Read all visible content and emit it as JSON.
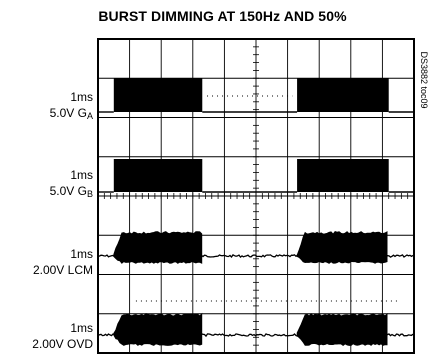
{
  "title": "BURST DIMMING AT 150Hz AND 50%",
  "figure_code": "DS3882 toc09",
  "chart_data": {
    "type": "line",
    "title": "BURST DIMMING AT 150Hz AND 50%",
    "divisions": {
      "horizontal": 10,
      "vertical": 8
    },
    "grid": true,
    "traces": [
      {
        "timebase": "1ms",
        "scale": "5.0V",
        "name": "G",
        "sub": "A",
        "kind": "pulse",
        "on_intervals_div": [
          [
            0.5,
            3.3
          ],
          [
            6.3,
            9.2
          ]
        ]
      },
      {
        "timebase": "1ms",
        "scale": "5.0V",
        "name": "G",
        "sub": "B",
        "kind": "pulse",
        "on_intervals_div": [
          [
            0.5,
            3.3
          ],
          [
            6.3,
            9.2
          ]
        ]
      },
      {
        "timebase": "1ms",
        "scale": "2.00V",
        "name": "LCM",
        "sub": "",
        "kind": "burst",
        "on_intervals_div": [
          [
            0.5,
            3.3
          ],
          [
            6.3,
            9.2
          ]
        ]
      },
      {
        "timebase": "1ms",
        "scale": "2.00V",
        "name": "OVD",
        "sub": "",
        "kind": "burst",
        "on_intervals_div": [
          [
            0.5,
            3.3
          ],
          [
            6.3,
            9.2
          ]
        ]
      }
    ]
  },
  "colors": {
    "ink": "#000000",
    "paper": "#ffffff"
  }
}
